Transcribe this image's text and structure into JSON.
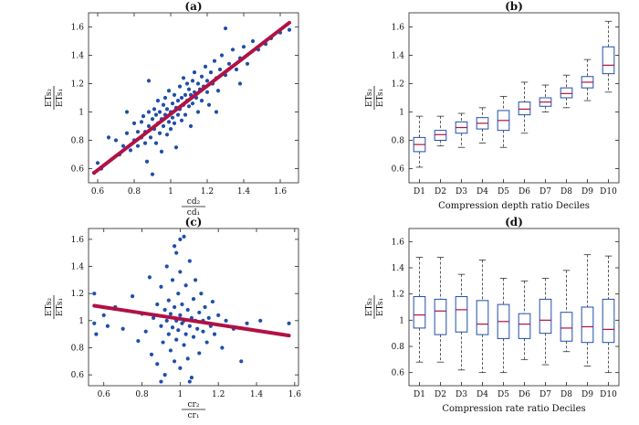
{
  "chart_data": [
    {
      "type": "scatter",
      "title": "(a)",
      "xlabel": {
        "num": "cd₂",
        "den": "cd₁"
      },
      "ylabel": {
        "num": "ETs₂",
        "den": "ETs₁"
      },
      "xlim": [
        0.55,
        1.7
      ],
      "ylim": [
        0.5,
        1.7
      ],
      "xticks": [
        "0.6",
        "0.8",
        "1",
        "1.2",
        "1.4",
        "1.6"
      ],
      "yticks": [
        "0.6",
        "0.8",
        "1",
        "1.2",
        "1.4",
        "1.6"
      ],
      "point_color": "#1f4fa8",
      "fit_color": "#b01245",
      "fit_line": {
        "x": [
          0.58,
          1.65
        ],
        "y": [
          0.57,
          1.63
        ]
      },
      "points": [
        [
          0.58,
          0.57
        ],
        [
          0.62,
          0.6
        ],
        [
          0.6,
          0.64
        ],
        [
          0.66,
          0.82
        ],
        [
          0.7,
          0.8
        ],
        [
          0.72,
          0.7
        ],
        [
          0.74,
          0.76
        ],
        [
          0.76,
          0.85
        ],
        [
          0.78,
          0.73
        ],
        [
          0.8,
          0.8
        ],
        [
          0.8,
          0.92
        ],
        [
          0.82,
          0.86
        ],
        [
          0.82,
          0.76
        ],
        [
          0.84,
          0.93
        ],
        [
          0.84,
          0.82
        ],
        [
          0.85,
          0.97
        ],
        [
          0.86,
          0.86
        ],
        [
          0.86,
          0.78
        ],
        [
          0.87,
          0.65
        ],
        [
          0.88,
          1.0
        ],
        [
          0.88,
          0.9
        ],
        [
          0.89,
          0.82
        ],
        [
          0.9,
          0.95
        ],
        [
          0.9,
          0.56
        ],
        [
          0.91,
          1.02
        ],
        [
          0.91,
          0.88
        ],
        [
          0.92,
          0.98
        ],
        [
          0.92,
          0.78
        ],
        [
          0.93,
          0.92
        ],
        [
          0.93,
          1.08
        ],
        [
          0.94,
          0.85
        ],
        [
          0.94,
          1.0
        ],
        [
          0.95,
          0.95
        ],
        [
          0.95,
          0.72
        ],
        [
          0.96,
          1.05
        ],
        [
          0.96,
          0.9
        ],
        [
          0.97,
          1.1
        ],
        [
          0.97,
          0.98
        ],
        [
          0.98,
          0.84
        ],
        [
          0.98,
          1.02
        ],
        [
          0.99,
          0.93
        ],
        [
          0.99,
          1.15
        ],
        [
          1.0,
          1.0
        ],
        [
          1.0,
          0.88
        ],
        [
          1.01,
          1.06
        ],
        [
          1.01,
          0.96
        ],
        [
          1.02,
          1.12
        ],
        [
          1.02,
          0.92
        ],
        [
          1.03,
          1.03
        ],
        [
          1.03,
          0.75
        ],
        [
          1.04,
          1.08
        ],
        [
          1.04,
          0.98
        ],
        [
          1.05,
          1.18
        ],
        [
          1.05,
          1.02
        ],
        [
          1.06,
          0.94
        ],
        [
          1.06,
          1.1
        ],
        [
          1.07,
          1.05
        ],
        [
          1.07,
          1.24
        ],
        [
          1.08,
          1.12
        ],
        [
          1.08,
          0.98
        ],
        [
          1.09,
          1.08
        ],
        [
          1.09,
          1.2
        ],
        [
          1.1,
          1.04
        ],
        [
          1.1,
          1.16
        ],
        [
          1.11,
          0.9
        ],
        [
          1.11,
          1.12
        ],
        [
          1.12,
          1.22
        ],
        [
          1.12,
          1.06
        ],
        [
          1.13,
          1.14
        ],
        [
          1.13,
          1.28
        ],
        [
          1.14,
          1.1
        ],
        [
          1.15,
          1.2
        ],
        [
          1.15,
          1.0
        ],
        [
          1.16,
          1.16
        ],
        [
          1.17,
          1.25
        ],
        [
          1.17,
          1.08
        ],
        [
          1.18,
          1.18
        ],
        [
          1.19,
          1.32
        ],
        [
          1.2,
          1.14
        ],
        [
          1.2,
          1.22
        ],
        [
          1.21,
          1.05
        ],
        [
          1.22,
          1.28
        ],
        [
          1.23,
          1.2
        ],
        [
          1.24,
          1.36
        ],
        [
          1.25,
          1.24
        ],
        [
          1.26,
          1.15
        ],
        [
          1.27,
          1.3
        ],
        [
          1.28,
          1.4
        ],
        [
          1.3,
          1.26
        ],
        [
          1.32,
          1.34
        ],
        [
          1.34,
          1.44
        ],
        [
          1.36,
          1.3
        ],
        [
          1.38,
          1.38
        ],
        [
          1.4,
          1.46
        ],
        [
          1.42,
          1.34
        ],
        [
          1.45,
          1.5
        ],
        [
          1.48,
          1.44
        ],
        [
          1.52,
          1.48
        ],
        [
          1.55,
          1.52
        ],
        [
          1.6,
          1.56
        ],
        [
          1.65,
          1.58
        ],
        [
          1.3,
          1.59
        ],
        [
          1.38,
          1.2
        ],
        [
          1.25,
          1.0
        ],
        [
          0.76,
          1.0
        ],
        [
          0.88,
          1.22
        ]
      ]
    },
    {
      "type": "box",
      "title": "(b)",
      "xlabel": "Compression depth ratio Deciles",
      "ylabel": {
        "num": "ETs₂",
        "den": "ETs₁"
      },
      "ylim": [
        0.5,
        1.7
      ],
      "yticks": [
        "0.6",
        "0.8",
        "1",
        "1.2",
        "1.4",
        "1.6"
      ],
      "categories": [
        "D1",
        "D2",
        "D3",
        "D4",
        "D5",
        "D6",
        "D7",
        "D8",
        "D9",
        "D10"
      ],
      "box_color": "#1f4fa8",
      "median_color": "#b01245",
      "boxes": [
        {
          "min": 0.61,
          "q1": 0.72,
          "median": 0.77,
          "q3": 0.82,
          "max": 0.97
        },
        {
          "min": 0.76,
          "q1": 0.8,
          "median": 0.84,
          "q3": 0.87,
          "max": 0.97
        },
        {
          "min": 0.75,
          "q1": 0.85,
          "median": 0.89,
          "q3": 0.93,
          "max": 0.99
        },
        {
          "min": 0.78,
          "q1": 0.88,
          "median": 0.92,
          "q3": 0.96,
          "max": 1.03
        },
        {
          "min": 0.75,
          "q1": 0.87,
          "median": 0.94,
          "q3": 1.01,
          "max": 1.11
        },
        {
          "min": 0.85,
          "q1": 0.98,
          "median": 1.02,
          "q3": 1.07,
          "max": 1.21
        },
        {
          "min": 1.0,
          "q1": 1.04,
          "median": 1.07,
          "q3": 1.1,
          "max": 1.19
        },
        {
          "min": 1.03,
          "q1": 1.1,
          "median": 1.13,
          "q3": 1.17,
          "max": 1.26
        },
        {
          "min": 1.08,
          "q1": 1.17,
          "median": 1.21,
          "q3": 1.25,
          "max": 1.37
        },
        {
          "min": 1.14,
          "q1": 1.27,
          "median": 1.33,
          "q3": 1.46,
          "max": 1.64
        }
      ]
    },
    {
      "type": "scatter",
      "title": "(c)",
      "xlabel": {
        "num": "cr₂",
        "den": "cr₁"
      },
      "ylabel": {
        "num": "ETs₂",
        "den": "ETs₁"
      },
      "xlim": [
        0.52,
        1.62
      ],
      "ylim": [
        0.52,
        1.68
      ],
      "xticks": [
        "0.6",
        "0.8",
        "1",
        "1.2",
        "1.4",
        "1.6"
      ],
      "yticks": [
        "0.6",
        "0.8",
        "1",
        "1.2",
        "1.4",
        "1.6"
      ],
      "point_color": "#1f4fa8",
      "fit_color": "#b01245",
      "fit_line": {
        "x": [
          0.55,
          1.57
        ],
        "y": [
          1.11,
          0.89
        ]
      },
      "points": [
        [
          0.55,
          1.2
        ],
        [
          0.55,
          0.98
        ],
        [
          0.56,
          0.9
        ],
        [
          0.6,
          1.04
        ],
        [
          0.62,
          0.96
        ],
        [
          0.66,
          1.1
        ],
        [
          0.7,
          0.94
        ],
        [
          0.75,
          1.18
        ],
        [
          0.78,
          0.85
        ],
        [
          0.8,
          1.05
        ],
        [
          0.82,
          0.92
        ],
        [
          0.84,
          1.32
        ],
        [
          0.85,
          0.75
        ],
        [
          0.86,
          1.02
        ],
        [
          0.88,
          1.12
        ],
        [
          0.88,
          0.68
        ],
        [
          0.9,
          0.96
        ],
        [
          0.9,
          1.25
        ],
        [
          0.91,
          0.84
        ],
        [
          0.92,
          1.08
        ],
        [
          0.92,
          0.6
        ],
        [
          0.93,
          1.0
        ],
        [
          0.93,
          1.4
        ],
        [
          0.94,
          0.9
        ],
        [
          0.94,
          1.15
        ],
        [
          0.95,
          0.78
        ],
        [
          0.95,
          1.05
        ],
        [
          0.96,
          0.95
        ],
        [
          0.96,
          1.3
        ],
        [
          0.97,
          0.7
        ],
        [
          0.97,
          1.1
        ],
        [
          0.98,
          1.0
        ],
        [
          0.98,
          0.86
        ],
        [
          0.98,
          1.5
        ],
        [
          0.99,
          1.2
        ],
        [
          0.99,
          0.93
        ],
        [
          1.0,
          1.04
        ],
        [
          1.0,
          0.65
        ],
        [
          1.0,
          1.36
        ],
        [
          1.01,
          0.98
        ],
        [
          1.01,
          1.12
        ],
        [
          1.02,
          0.82
        ],
        [
          1.02,
          1.62
        ],
        [
          1.02,
          1.0
        ],
        [
          1.03,
          1.26
        ],
        [
          1.03,
          0.9
        ],
        [
          1.04,
          0.72
        ],
        [
          1.04,
          1.08
        ],
        [
          1.05,
          0.96
        ],
        [
          1.05,
          1.44
        ],
        [
          1.06,
          1.02
        ],
        [
          1.06,
          0.58
        ],
        [
          1.07,
          1.16
        ],
        [
          1.07,
          0.88
        ],
        [
          1.08,
          1.0
        ],
        [
          1.08,
          1.3
        ],
        [
          1.09,
          0.94
        ],
        [
          1.1,
          1.06
        ],
        [
          1.1,
          0.76
        ],
        [
          1.11,
          1.2
        ],
        [
          1.12,
          0.92
        ],
        [
          1.12,
          1.0
        ],
        [
          1.13,
          1.1
        ],
        [
          1.14,
          0.84
        ],
        [
          1.15,
          1.02
        ],
        [
          1.16,
          0.96
        ],
        [
          1.17,
          1.14
        ],
        [
          1.18,
          0.9
        ],
        [
          1.2,
          1.04
        ],
        [
          1.22,
          0.8
        ],
        [
          1.24,
          1.0
        ],
        [
          1.28,
          0.94
        ],
        [
          1.32,
          0.7
        ],
        [
          1.35,
          0.98
        ],
        [
          1.42,
          1.0
        ],
        [
          1.57,
          0.98
        ],
        [
          0.97,
          1.55
        ],
        [
          1.0,
          1.6
        ],
        [
          0.9,
          0.55
        ],
        [
          1.05,
          0.55
        ]
      ]
    },
    {
      "type": "box",
      "title": "(d)",
      "xlabel": "Compression rate ratio Deciles",
      "ylabel": {
        "num": "ETs₂",
        "den": "ETs₁"
      },
      "ylim": [
        0.5,
        1.7
      ],
      "yticks": [
        "0.6",
        "0.8",
        "1",
        "1.2",
        "1.4",
        "1.6"
      ],
      "categories": [
        "D1",
        "D2",
        "D3",
        "D4",
        "D5",
        "D6",
        "D7",
        "D8",
        "D9",
        "D10"
      ],
      "box_color": "#1f4fa8",
      "median_color": "#b01245",
      "boxes": [
        {
          "min": 0.68,
          "q1": 0.94,
          "median": 1.04,
          "q3": 1.18,
          "max": 1.48
        },
        {
          "min": 0.68,
          "q1": 0.89,
          "median": 1.07,
          "q3": 1.16,
          "max": 1.48
        },
        {
          "min": 0.62,
          "q1": 0.91,
          "median": 1.08,
          "q3": 1.18,
          "max": 1.35
        },
        {
          "min": 0.6,
          "q1": 0.89,
          "median": 0.97,
          "q3": 1.15,
          "max": 1.46
        },
        {
          "min": 0.6,
          "q1": 0.86,
          "median": 0.99,
          "q3": 1.12,
          "max": 1.32
        },
        {
          "min": 0.7,
          "q1": 0.86,
          "median": 0.97,
          "q3": 1.05,
          "max": 1.3
        },
        {
          "min": 0.66,
          "q1": 0.9,
          "median": 1.0,
          "q3": 1.16,
          "max": 1.32
        },
        {
          "min": 0.76,
          "q1": 0.84,
          "median": 0.94,
          "q3": 1.06,
          "max": 1.38
        },
        {
          "min": 0.65,
          "q1": 0.83,
          "median": 0.95,
          "q3": 1.1,
          "max": 1.5
        },
        {
          "min": 0.6,
          "q1": 0.83,
          "median": 0.93,
          "q3": 1.16,
          "max": 1.49
        }
      ]
    }
  ]
}
